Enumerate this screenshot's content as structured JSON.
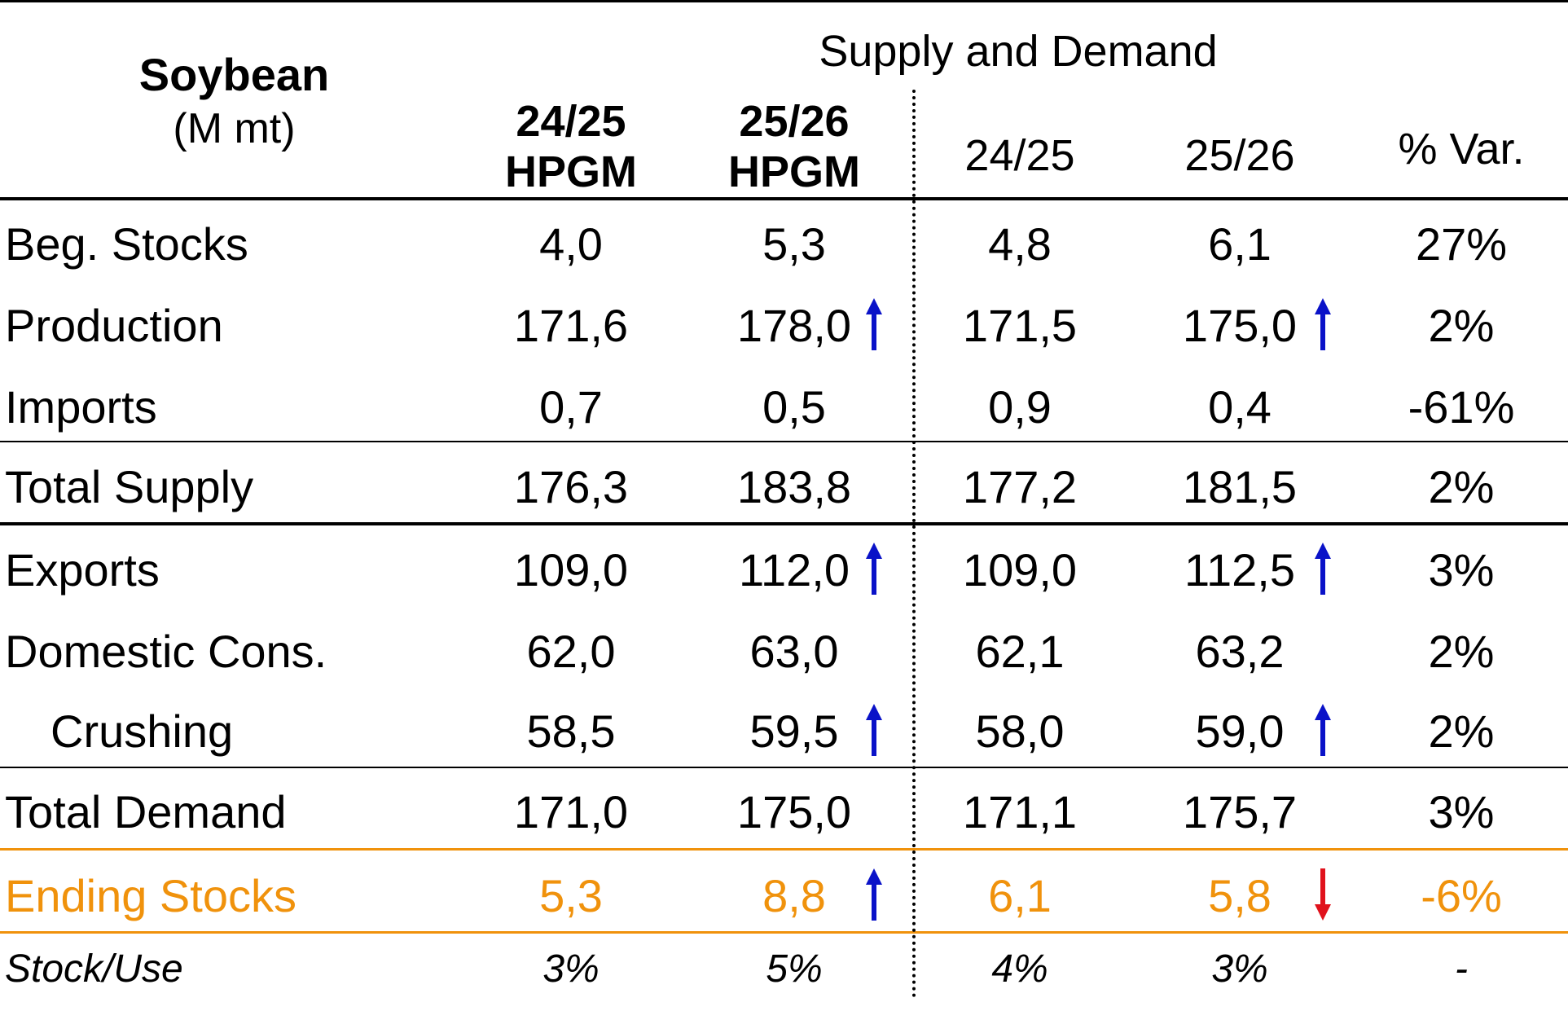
{
  "header": {
    "commodity": "Soybean",
    "unit": "(M mt)",
    "group_title": "Supply and Demand",
    "columns": [
      {
        "line1": "24/25",
        "line2": "HPGM"
      },
      {
        "line1": "25/26",
        "line2": "HPGM"
      },
      {
        "line1": "24/25"
      },
      {
        "line1": "25/26"
      },
      {
        "line1": "% Var."
      }
    ]
  },
  "rows": [
    {
      "label": "Beg. Stocks",
      "values": [
        "4,0",
        "5,3",
        "4,8",
        "6,1",
        "27%"
      ]
    },
    {
      "label": "Production",
      "values": [
        "171,6",
        "178,0",
        "171,5",
        "175,0",
        "2%"
      ],
      "arrows": [
        "",
        "up",
        "",
        "up",
        ""
      ]
    },
    {
      "label": "Imports",
      "values": [
        "0,7",
        "0,5",
        "0,9",
        "0,4",
        "-61%"
      ]
    },
    {
      "label": "Total Supply",
      "values": [
        "176,3",
        "183,8",
        "177,2",
        "181,5",
        "2%"
      ]
    },
    {
      "label": "Exports",
      "values": [
        "109,0",
        "112,0",
        "109,0",
        "112,5",
        "3%"
      ],
      "arrows": [
        "",
        "up",
        "",
        "up",
        ""
      ]
    },
    {
      "label": "Domestic Cons.",
      "values": [
        "62,0",
        "63,0",
        "62,1",
        "63,2",
        "2%"
      ]
    },
    {
      "label": "Crushing",
      "values": [
        "58,5",
        "59,5",
        "58,0",
        "59,0",
        "2%"
      ],
      "arrows": [
        "",
        "up",
        "",
        "up",
        ""
      ]
    },
    {
      "label": "Total Demand",
      "values": [
        "171,0",
        "175,0",
        "171,1",
        "175,7",
        "3%"
      ]
    },
    {
      "label": "Ending Stocks",
      "values": [
        "5,3",
        "8,8",
        "6,1",
        "5,8",
        "-6%"
      ],
      "arrows": [
        "",
        "up",
        "",
        "down",
        ""
      ]
    },
    {
      "label": "Stock/Use",
      "values": [
        "3%",
        "5%",
        "4%",
        "3%",
        "-"
      ]
    }
  ],
  "colors": {
    "highlight": "#F0920C",
    "arrow_up": "#0A12C8",
    "arrow_down": "#E0121C"
  },
  "icons": {
    "up": "arrow-up-icon",
    "down": "arrow-down-icon"
  }
}
